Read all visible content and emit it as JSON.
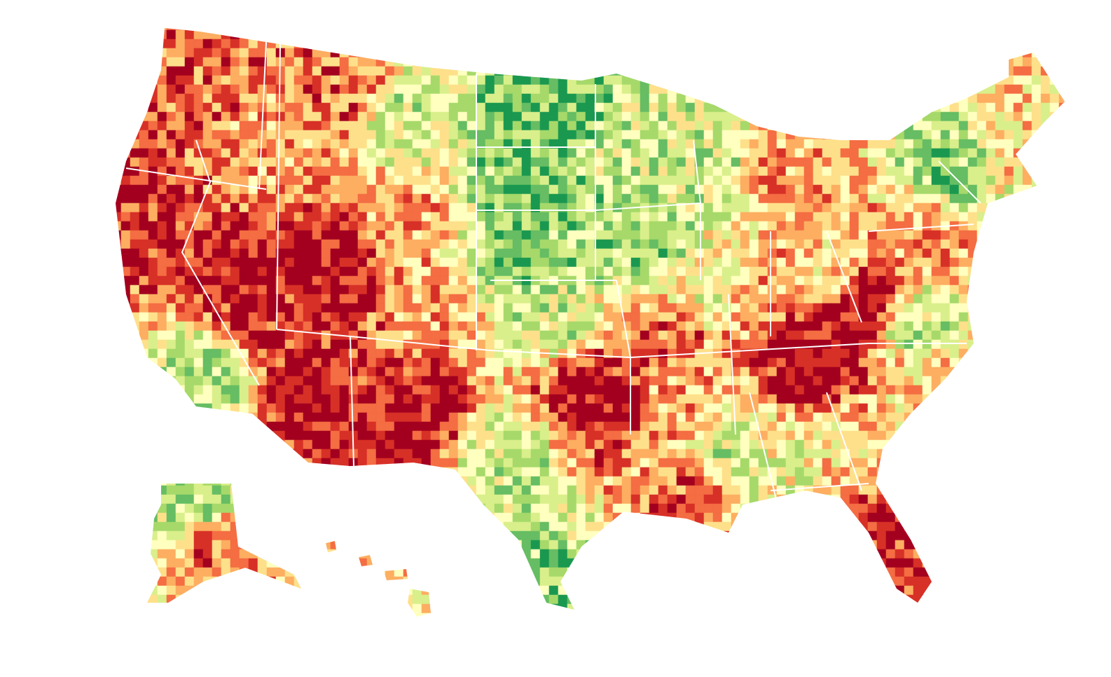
{
  "map": {
    "palette": [
      "#a3001f",
      "#d73027",
      "#f46d43",
      "#fdae61",
      "#fee08b",
      "#ffffbf",
      "#d9ef8b",
      "#a6d96a",
      "#66bd63",
      "#1a9850"
    ]
  }
}
